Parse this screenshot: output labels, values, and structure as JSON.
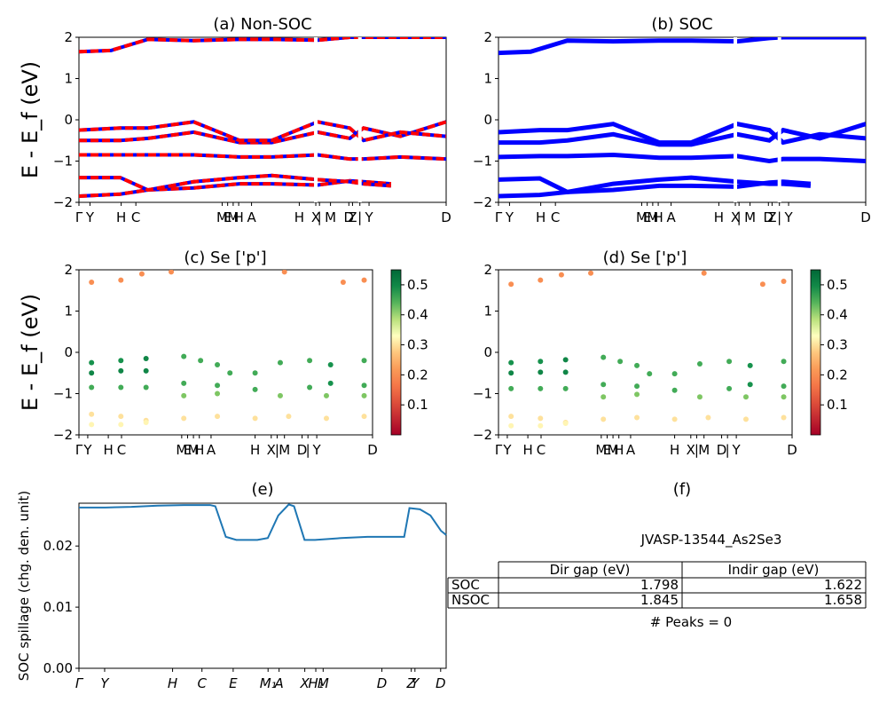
{
  "chart_data": [
    {
      "id": "a",
      "type": "line",
      "title": "(a) Non-SOC",
      "ylabel": "E - E_f (eV)",
      "ylim": [
        -2,
        2
      ],
      "yticks": [
        "-2",
        "-1",
        "0",
        "1",
        "2"
      ],
      "kticks": [
        "Γ",
        "Y",
        "H",
        "C",
        "M",
        "E",
        "M",
        "H",
        "A",
        "H",
        "X",
        "|",
        "M",
        "D",
        "Z",
        "|",
        "Y",
        "D"
      ],
      "series": [
        {
          "x": [
            0,
            0.7,
            1.5,
            2.5,
            3.5,
            4.2,
            5.2,
            5.9,
            6.2,
            7,
            8
          ],
          "values": [
            1.65,
            1.68,
            1.95,
            1.92,
            1.95,
            1.95,
            1.93,
            2.0,
            2.0,
            2.0,
            2.0
          ]
        },
        {
          "x": [
            0,
            0.9,
            1.5,
            2.5,
            3.5,
            4.2,
            5.2,
            5.9,
            6.2,
            6.8
          ],
          "values": [
            -1.85,
            -1.8,
            -1.7,
            -1.65,
            -1.55,
            -1.55,
            -1.58,
            -1.48,
            -1.5,
            -1.55
          ]
        },
        {
          "x": [
            0,
            0.9,
            1.5,
            2.5,
            3.5,
            4.2,
            5.2,
            5.9,
            6.2,
            6.8
          ],
          "values": [
            -1.4,
            -1.4,
            -1.7,
            -1.5,
            -1.4,
            -1.35,
            -1.45,
            -1.5,
            -1.55,
            -1.6
          ]
        },
        {
          "x": [
            0,
            0.9,
            1.5,
            2.5,
            3.5,
            4.2,
            5.2,
            5.9,
            6.2,
            7,
            8
          ],
          "values": [
            -0.85,
            -0.85,
            -0.85,
            -0.85,
            -0.9,
            -0.9,
            -0.85,
            -0.95,
            -0.95,
            -0.9,
            -0.95
          ]
        },
        {
          "x": [
            0,
            0.9,
            1.5,
            2.5,
            3.5,
            4.2,
            5.2,
            5.9,
            6.2,
            7,
            8
          ],
          "values": [
            -0.5,
            -0.5,
            -0.45,
            -0.3,
            -0.55,
            -0.55,
            -0.3,
            -0.45,
            -0.2,
            -0.4,
            -0.05
          ]
        },
        {
          "x": [
            0,
            0.9,
            1.5,
            2.5,
            3.5,
            4.2,
            5.2,
            5.9,
            6.2,
            7,
            8
          ],
          "values": [
            -0.25,
            -0.2,
            -0.2,
            -0.05,
            -0.5,
            -0.5,
            -0.05,
            -0.2,
            -0.5,
            -0.3,
            -0.4
          ]
        }
      ]
    },
    {
      "id": "b",
      "type": "line",
      "title": "(b) SOC",
      "ylim": [
        -2,
        2
      ],
      "yticks": [
        "-2",
        "-1",
        "0",
        "1",
        "2"
      ],
      "kticks": [
        "Γ",
        "Y",
        "H",
        "C",
        "M",
        "E",
        "M",
        "H",
        "A",
        "H",
        "X",
        "|",
        "M",
        "D",
        "Z",
        "|",
        "Y",
        "D"
      ],
      "series": [
        {
          "x": [
            0,
            0.7,
            1.5,
            2.5,
            3.5,
            4.2,
            5.2,
            5.9,
            6.2,
            7,
            8
          ],
          "values": [
            1.62,
            1.65,
            1.92,
            1.9,
            1.92,
            1.92,
            1.9,
            1.98,
            2.0,
            2.0,
            2.0
          ]
        },
        {
          "x": [
            0,
            0.9,
            1.5,
            2.5,
            3.5,
            4.2,
            5.2,
            5.9,
            6.2,
            6.8
          ],
          "values": [
            -1.85,
            -1.82,
            -1.75,
            -1.7,
            -1.6,
            -1.6,
            -1.62,
            -1.52,
            -1.5,
            -1.55
          ]
        },
        {
          "x": [
            0,
            0.9,
            1.5,
            2.5,
            3.5,
            4.2,
            5.2,
            5.9,
            6.2,
            6.8
          ],
          "values": [
            -1.45,
            -1.42,
            -1.75,
            -1.55,
            -1.45,
            -1.4,
            -1.5,
            -1.55,
            -1.55,
            -1.6
          ]
        },
        {
          "x": [
            0,
            0.9,
            1.5,
            2.5,
            3.5,
            4.2,
            5.2,
            5.9,
            6.2,
            7,
            8
          ],
          "values": [
            -0.9,
            -0.88,
            -0.88,
            -0.85,
            -0.92,
            -0.92,
            -0.88,
            -1.0,
            -0.95,
            -0.95,
            -1.0
          ]
        },
        {
          "x": [
            0,
            0.9,
            1.5,
            2.5,
            3.5,
            4.2,
            5.2,
            5.9,
            6.2,
            7,
            8
          ],
          "values": [
            -0.55,
            -0.55,
            -0.5,
            -0.35,
            -0.6,
            -0.6,
            -0.35,
            -0.5,
            -0.25,
            -0.45,
            -0.1
          ]
        },
        {
          "x": [
            0,
            0.9,
            1.5,
            2.5,
            3.5,
            4.2,
            5.2,
            5.9,
            6.2,
            7,
            8
          ],
          "values": [
            -0.3,
            -0.25,
            -0.25,
            -0.1,
            -0.55,
            -0.55,
            -0.1,
            -0.25,
            -0.55,
            -0.35,
            -0.45
          ]
        }
      ]
    },
    {
      "id": "c",
      "type": "scatter",
      "title": "(c)  Se ['p']",
      "ylabel": "E - E_f (eV)",
      "ylim": [
        -2,
        2
      ],
      "yticks": [
        "-2",
        "-1",
        "0",
        "1",
        "2"
      ],
      "colorbar_ticks": [
        "0.1",
        "0.2",
        "0.3",
        "0.4",
        "0.5"
      ],
      "kticks": [
        "Γ",
        "Y",
        "H",
        "C",
        "M",
        "E",
        "M",
        "H",
        "A",
        "H",
        "X",
        "|",
        "M",
        "D",
        "|",
        "Y",
        "D"
      ],
      "points": [
        {
          "x": 0.3,
          "y": 1.7,
          "v": 0.2
        },
        {
          "x": 1.0,
          "y": 1.75,
          "v": 0.2
        },
        {
          "x": 1.5,
          "y": 1.9,
          "v": 0.2
        },
        {
          "x": 2.2,
          "y": 1.95,
          "v": 0.2
        },
        {
          "x": 0.3,
          "y": -0.25,
          "v": 0.48
        },
        {
          "x": 1.0,
          "y": -0.2,
          "v": 0.48
        },
        {
          "x": 1.6,
          "y": -0.15,
          "v": 0.5
        },
        {
          "x": 0.3,
          "y": -0.5,
          "v": 0.5
        },
        {
          "x": 1.0,
          "y": -0.45,
          "v": 0.5
        },
        {
          "x": 1.6,
          "y": -0.45,
          "v": 0.5
        },
        {
          "x": 0.3,
          "y": -0.85,
          "v": 0.45
        },
        {
          "x": 1.0,
          "y": -0.85,
          "v": 0.45
        },
        {
          "x": 1.6,
          "y": -0.85,
          "v": 0.45
        },
        {
          "x": 0.3,
          "y": -1.5,
          "v": 0.3
        },
        {
          "x": 1.0,
          "y": -1.55,
          "v": 0.3
        },
        {
          "x": 1.6,
          "y": -1.65,
          "v": 0.3
        },
        {
          "x": 0.3,
          "y": -1.75,
          "v": 0.32
        },
        {
          "x": 1.0,
          "y": -1.75,
          "v": 0.32
        },
        {
          "x": 1.6,
          "y": -1.7,
          "v": 0.32
        },
        {
          "x": 2.5,
          "y": -0.1,
          "v": 0.45
        },
        {
          "x": 2.9,
          "y": -0.2,
          "v": 0.45
        },
        {
          "x": 3.3,
          "y": -0.3,
          "v": 0.45
        },
        {
          "x": 3.6,
          "y": -0.5,
          "v": 0.45
        },
        {
          "x": 4.2,
          "y": -0.5,
          "v": 0.45
        },
        {
          "x": 4.8,
          "y": -0.25,
          "v": 0.45
        },
        {
          "x": 5.5,
          "y": -0.2,
          "v": 0.45
        },
        {
          "x": 6.0,
          "y": -0.3,
          "v": 0.48
        },
        {
          "x": 6.8,
          "y": -0.2,
          "v": 0.45
        },
        {
          "x": 2.5,
          "y": -0.75,
          "v": 0.45
        },
        {
          "x": 3.3,
          "y": -0.8,
          "v": 0.45
        },
        {
          "x": 4.2,
          "y": -0.9,
          "v": 0.45
        },
        {
          "x": 5.5,
          "y": -0.85,
          "v": 0.45
        },
        {
          "x": 6.0,
          "y": -0.75,
          "v": 0.48
        },
        {
          "x": 6.8,
          "y": -0.8,
          "v": 0.45
        },
        {
          "x": 2.5,
          "y": -1.05,
          "v": 0.42
        },
        {
          "x": 3.3,
          "y": -1.0,
          "v": 0.42
        },
        {
          "x": 4.8,
          "y": -1.05,
          "v": 0.42
        },
        {
          "x": 5.9,
          "y": -1.05,
          "v": 0.42
        },
        {
          "x": 6.8,
          "y": -1.05,
          "v": 0.42
        },
        {
          "x": 2.5,
          "y": -1.6,
          "v": 0.3
        },
        {
          "x": 3.3,
          "y": -1.55,
          "v": 0.3
        },
        {
          "x": 4.2,
          "y": -1.6,
          "v": 0.3
        },
        {
          "x": 5.0,
          "y": -1.55,
          "v": 0.3
        },
        {
          "x": 5.9,
          "y": -1.6,
          "v": 0.3
        },
        {
          "x": 6.8,
          "y": -1.55,
          "v": 0.3
        },
        {
          "x": 6.3,
          "y": 1.7,
          "v": 0.2
        },
        {
          "x": 6.8,
          "y": 1.75,
          "v": 0.2
        },
        {
          "x": 4.9,
          "y": 1.95,
          "v": 0.2
        }
      ]
    },
    {
      "id": "d",
      "type": "scatter",
      "title": "(d) Se ['p']",
      "ylim": [
        -2,
        2
      ],
      "yticks": [
        "-2",
        "-1",
        "0",
        "1",
        "2"
      ],
      "colorbar_ticks": [
        "0.1",
        "0.2",
        "0.3",
        "0.4",
        "0.5"
      ],
      "kticks": [
        "Γ",
        "Y",
        "H",
        "C",
        "M",
        "E",
        "M",
        "H",
        "A",
        "H",
        "X",
        "|",
        "M",
        "D",
        "|",
        "Y",
        "D"
      ],
      "points": [
        {
          "x": 0.3,
          "y": 1.65,
          "v": 0.2
        },
        {
          "x": 1.0,
          "y": 1.75,
          "v": 0.2
        },
        {
          "x": 1.5,
          "y": 1.88,
          "v": 0.2
        },
        {
          "x": 2.2,
          "y": 1.92,
          "v": 0.2
        },
        {
          "x": 0.3,
          "y": -0.25,
          "v": 0.48
        },
        {
          "x": 1.0,
          "y": -0.22,
          "v": 0.48
        },
        {
          "x": 1.6,
          "y": -0.18,
          "v": 0.5
        },
        {
          "x": 0.3,
          "y": -0.5,
          "v": 0.5
        },
        {
          "x": 1.0,
          "y": -0.48,
          "v": 0.5
        },
        {
          "x": 1.6,
          "y": -0.48,
          "v": 0.5
        },
        {
          "x": 0.3,
          "y": -0.88,
          "v": 0.45
        },
        {
          "x": 1.0,
          "y": -0.88,
          "v": 0.45
        },
        {
          "x": 1.6,
          "y": -0.88,
          "v": 0.45
        },
        {
          "x": 0.3,
          "y": -1.55,
          "v": 0.3
        },
        {
          "x": 1.0,
          "y": -1.6,
          "v": 0.3
        },
        {
          "x": 1.6,
          "y": -1.7,
          "v": 0.3
        },
        {
          "x": 0.3,
          "y": -1.78,
          "v": 0.32
        },
        {
          "x": 1.0,
          "y": -1.78,
          "v": 0.32
        },
        {
          "x": 1.6,
          "y": -1.72,
          "v": 0.32
        },
        {
          "x": 2.5,
          "y": -0.12,
          "v": 0.45
        },
        {
          "x": 2.9,
          "y": -0.22,
          "v": 0.45
        },
        {
          "x": 3.3,
          "y": -0.32,
          "v": 0.45
        },
        {
          "x": 3.6,
          "y": -0.52,
          "v": 0.45
        },
        {
          "x": 4.2,
          "y": -0.52,
          "v": 0.45
        },
        {
          "x": 4.8,
          "y": -0.28,
          "v": 0.45
        },
        {
          "x": 5.5,
          "y": -0.22,
          "v": 0.45
        },
        {
          "x": 6.0,
          "y": -0.32,
          "v": 0.48
        },
        {
          "x": 6.8,
          "y": -0.22,
          "v": 0.45
        },
        {
          "x": 2.5,
          "y": -0.78,
          "v": 0.45
        },
        {
          "x": 3.3,
          "y": -0.82,
          "v": 0.45
        },
        {
          "x": 4.2,
          "y": -0.92,
          "v": 0.45
        },
        {
          "x": 5.5,
          "y": -0.88,
          "v": 0.45
        },
        {
          "x": 6.0,
          "y": -0.78,
          "v": 0.48
        },
        {
          "x": 6.8,
          "y": -0.82,
          "v": 0.45
        },
        {
          "x": 2.5,
          "y": -1.08,
          "v": 0.42
        },
        {
          "x": 3.3,
          "y": -1.02,
          "v": 0.42
        },
        {
          "x": 4.8,
          "y": -1.08,
          "v": 0.42
        },
        {
          "x": 5.9,
          "y": -1.08,
          "v": 0.42
        },
        {
          "x": 6.8,
          "y": -1.08,
          "v": 0.42
        },
        {
          "x": 2.5,
          "y": -1.62,
          "v": 0.3
        },
        {
          "x": 3.3,
          "y": -1.58,
          "v": 0.3
        },
        {
          "x": 4.2,
          "y": -1.62,
          "v": 0.3
        },
        {
          "x": 5.0,
          "y": -1.58,
          "v": 0.3
        },
        {
          "x": 5.9,
          "y": -1.62,
          "v": 0.3
        },
        {
          "x": 6.8,
          "y": -1.58,
          "v": 0.3
        },
        {
          "x": 6.3,
          "y": 1.65,
          "v": 0.2
        },
        {
          "x": 6.8,
          "y": 1.72,
          "v": 0.2
        },
        {
          "x": 4.9,
          "y": 1.92,
          "v": 0.2
        }
      ]
    },
    {
      "id": "e",
      "type": "line",
      "title": "(e)",
      "ylabel": "SOC spillage (chg. den. unit)",
      "ylim": [
        0,
        0.027
      ],
      "yticks": [
        "0.00",
        "0.01",
        "0.02"
      ],
      "yvals": [
        0,
        0.01,
        0.02
      ],
      "kticks": [
        "Γ",
        "Y",
        "H",
        "C",
        "E",
        "M₁",
        "A",
        "X",
        "H₁",
        "M",
        "D",
        "Z",
        "Y",
        "D"
      ],
      "series": [
        {
          "x": [
            0,
            0.5,
            1.0,
            1.5,
            2.0,
            2.5,
            2.6,
            2.8,
            3.0,
            3.4,
            3.6,
            3.8,
            4.0,
            4.1,
            4.3,
            4.5,
            5.0,
            5.5,
            6.0,
            6.2,
            6.3,
            6.5,
            6.7,
            6.9,
            7.0
          ],
          "values": [
            0.0263,
            0.0263,
            0.0264,
            0.0266,
            0.0267,
            0.0267,
            0.0265,
            0.0215,
            0.021,
            0.021,
            0.0213,
            0.025,
            0.0268,
            0.0265,
            0.021,
            0.021,
            0.0213,
            0.0215,
            0.0215,
            0.0215,
            0.0262,
            0.026,
            0.025,
            0.0225,
            0.0218
          ]
        }
      ]
    },
    {
      "id": "f",
      "type": "table",
      "title": "(f)",
      "label": "JVASP-13544_As2Se3",
      "columns": [
        "",
        "Dir gap (eV)",
        "Indir gap (eV)"
      ],
      "rows": [
        [
          "SOC",
          "1.798",
          "1.622"
        ],
        [
          "NSOC",
          "1.845",
          "1.658"
        ]
      ],
      "footer": "# Peaks = 0"
    }
  ],
  "colors": {
    "nonsoc_a": "#ff0000",
    "nonsoc_b": "#0000ff",
    "soc": "#0000ff",
    "spillage": "#1f77b4"
  }
}
